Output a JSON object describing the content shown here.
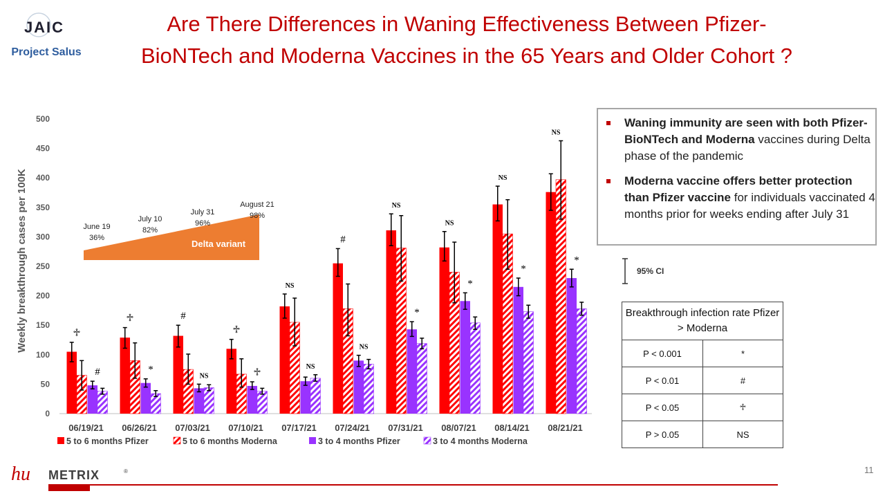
{
  "header": {
    "logo_text": "JAIC",
    "project_label": "Project Salus",
    "title_line1": "Are There Differences in Waning Effectiveness Between Pfizer-",
    "title_line2": "BioNTech and Moderna Vaccines in the 65 Years and Older Cohort ?"
  },
  "colors": {
    "pfizer_5to6": "#ff0000",
    "moderna_5to6": "#ff0000",
    "pfizer_3to4": "#9933ff",
    "moderna_3to4": "#9933ff",
    "title": "#c00000",
    "delta_band": "#ed7d31",
    "project_label": "#2e5d9e"
  },
  "chart_data": {
    "type": "bar",
    "ylabel": "Weekly breakthrough cases per 100K",
    "ylim": [
      0,
      500
    ],
    "yticks": [
      "0",
      "50",
      "100",
      "150",
      "200",
      "250",
      "300",
      "350",
      "400",
      "450",
      "500"
    ],
    "categories": [
      "06/19/21",
      "06/26/21",
      "07/03/21",
      "07/10/21",
      "07/17/21",
      "07/24/21",
      "07/31/21",
      "08/07/21",
      "08/14/21",
      "08/21/21"
    ],
    "series": [
      {
        "name": "5 to 6 months Pfizer",
        "style": "solid",
        "color": "#ff0000",
        "values": [
          105,
          129,
          132,
          110,
          182,
          255,
          311,
          282,
          355,
          376
        ],
        "err_low": [
          88,
          111,
          113,
          93,
          162,
          233,
          285,
          259,
          327,
          345
        ],
        "err_high": [
          121,
          146,
          150,
          126,
          203,
          280,
          339,
          309,
          386,
          407
        ]
      },
      {
        "name": "5 to 6 months Moderna",
        "style": "hatched",
        "color": "#ff0000",
        "values": [
          65,
          90,
          75,
          67,
          155,
          178,
          281,
          240,
          305,
          397
        ],
        "err_low": [
          40,
          60,
          50,
          45,
          115,
          132,
          225,
          188,
          245,
          330
        ],
        "err_high": [
          90,
          120,
          101,
          93,
          196,
          220,
          336,
          291,
          363,
          463
        ]
      },
      {
        "name": "3 to 4 months Pfizer",
        "style": "solid",
        "color": "#9933ff",
        "values": [
          48,
          52,
          43,
          47,
          55,
          90,
          143,
          191,
          215,
          230
        ],
        "err_low": [
          42,
          45,
          37,
          41,
          48,
          80,
          131,
          177,
          200,
          215
        ],
        "err_high": [
          55,
          59,
          50,
          54,
          62,
          99,
          156,
          205,
          230,
          245
        ]
      },
      {
        "name": "3 to 4 months Moderna",
        "style": "hatched",
        "color": "#9933ff",
        "values": [
          38,
          34,
          44,
          38,
          60,
          84,
          119,
          154,
          173,
          178
        ],
        "err_low": [
          33,
          29,
          39,
          33,
          55,
          76,
          110,
          143,
          162,
          167
        ],
        "err_high": [
          43,
          39,
          49,
          43,
          66,
          92,
          128,
          164,
          184,
          189
        ]
      }
    ],
    "annotations": [
      {
        "text": "♱",
        "category": "06/19/21",
        "series_group": "5 to 6 months"
      },
      {
        "text": "#",
        "category": "06/19/21",
        "series_group": "3 to 4 months"
      },
      {
        "text": "♱",
        "category": "06/26/21",
        "series_group": "5 to 6 months"
      },
      {
        "text": "*",
        "category": "06/26/21",
        "series_group": "3 to 4 months"
      },
      {
        "text": "#",
        "category": "07/03/21",
        "series_group": "5 to 6 months"
      },
      {
        "text": "NS",
        "category": "07/03/21",
        "series_group": "3 to 4 months"
      },
      {
        "text": "♱",
        "category": "07/10/21",
        "series_group": "5 to 6 months"
      },
      {
        "text": "♱",
        "category": "07/10/21",
        "series_group": "3 to 4 months"
      },
      {
        "text": "NS",
        "category": "07/17/21",
        "series_group": "5 to 6 months"
      },
      {
        "text": "NS",
        "category": "07/17/21",
        "series_group": "3 to 4 months"
      },
      {
        "text": "#",
        "category": "07/24/21",
        "series_group": "5 to 6 months"
      },
      {
        "text": "NS",
        "category": "07/24/21",
        "series_group": "3 to 4 months"
      },
      {
        "text": "NS",
        "category": "07/31/21",
        "series_group": "5 to 6 months"
      },
      {
        "text": "*",
        "category": "07/31/21",
        "series_group": "3 to 4 months"
      },
      {
        "text": "NS",
        "category": "08/07/21",
        "series_group": "5 to 6 months"
      },
      {
        "text": "*",
        "category": "08/07/21",
        "series_group": "3 to 4 months"
      },
      {
        "text": "NS",
        "category": "08/14/21",
        "series_group": "5 to 6 months"
      },
      {
        "text": "*",
        "category": "08/14/21",
        "series_group": "3 to 4 months"
      },
      {
        "text": "NS",
        "category": "08/21/21",
        "series_group": "5 to 6 months"
      },
      {
        "text": "*",
        "category": "08/21/21",
        "series_group": "3 to 4 months"
      }
    ],
    "delta_band": {
      "label": "Delta variant",
      "points": [
        {
          "date": "June 19",
          "pct": "36%"
        },
        {
          "date": "July 10",
          "pct": "82%"
        },
        {
          "date": "July 31",
          "pct": "96%"
        },
        {
          "date": "August 21",
          "pct": "98%"
        }
      ]
    },
    "legend_position": "bottom",
    "grid": false
  },
  "notes": {
    "bullet1_bold": "Waning immunity are seen with both Pfizer-BioNTech and Moderna",
    "bullet1_rest": " vaccines during Delta phase of the  pandemic",
    "bullet2_bold": "Moderna  vaccine offers better protection than Pfizer vaccine",
    "bullet2_rest": " for individuals vaccinated 4 months prior for weeks ending after July 31"
  },
  "ci_legend": {
    "label": "95% CI"
  },
  "significance_table": {
    "header": "Breakthrough infection rate Pfizer > Moderna",
    "rows": [
      {
        "p": "P < 0.001",
        "symbol": "*"
      },
      {
        "p": "P < 0.01",
        "symbol": "#"
      },
      {
        "p": "P < 0.05",
        "symbol": "♱"
      },
      {
        "p": "P > 0.05",
        "symbol": "NS"
      }
    ]
  },
  "footer": {
    "brand_hu": "hu",
    "brand_metrix": "METRIX",
    "registered": "®",
    "page_number": "11"
  }
}
